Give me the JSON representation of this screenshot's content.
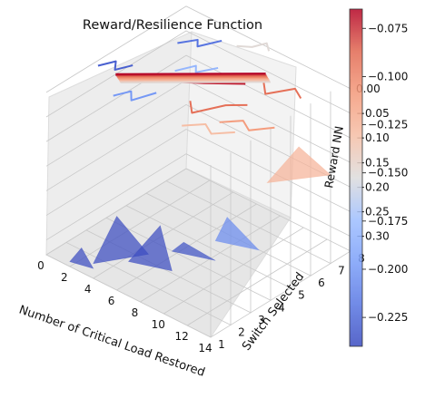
{
  "chart_data": {
    "type": "surface",
    "title": "Reward/Resilience Function",
    "xlabel": "Number of Critical Load Restored",
    "ylabel": "Switch Selected",
    "zlabel": "Reward NN",
    "x_ticks": [
      "0",
      "2",
      "4",
      "6",
      "8",
      "10",
      "12",
      "14"
    ],
    "y_ticks": [
      "1",
      "2",
      "3",
      "4",
      "5",
      "6",
      "7",
      "8"
    ],
    "z_ticks": [
      "0.00",
      "−0.05",
      "−0.10",
      "−0.15",
      "−0.20",
      "−0.25",
      "−0.30"
    ],
    "xlim": [
      0,
      14
    ],
    "ylim": [
      1,
      8
    ],
    "zlim": [
      -0.33,
      0.02
    ],
    "colormap": "coolwarm",
    "colorbar": {
      "range": [
        -0.24,
        -0.065
      ],
      "ticks": [
        "−0.075",
        "−0.100",
        "−0.125",
        "−0.150",
        "−0.175",
        "−0.200",
        "−0.225"
      ]
    },
    "surface_patches": [
      {
        "x": [
          4,
          6,
          7
        ],
        "y": [
          1,
          1,
          2
        ],
        "z": [
          -0.3,
          -0.18,
          -0.27
        ]
      },
      {
        "x": [
          7,
          8,
          9
        ],
        "y": [
          1,
          2,
          2
        ],
        "z": [
          -0.26,
          -0.2,
          -0.28
        ]
      },
      {
        "x": [
          9,
          10,
          11
        ],
        "y": [
          2,
          2,
          3
        ],
        "z": [
          -0.24,
          -0.21,
          -0.26
        ]
      },
      {
        "x": [
          11,
          12,
          13
        ],
        "y": [
          3,
          3,
          4
        ],
        "z": [
          -0.22,
          -0.16,
          -0.24
        ]
      },
      {
        "x": [
          12,
          13,
          14
        ],
        "y": [
          5,
          6,
          7
        ],
        "z": [
          -0.14,
          -0.08,
          -0.15
        ]
      },
      {
        "x": [
          2,
          3,
          4
        ],
        "y": [
          1,
          1,
          1
        ],
        "z": [
          -0.32,
          -0.28,
          -0.31
        ]
      }
    ],
    "contour_lines": [
      {
        "level": -0.23,
        "points": [
          [
            1,
            3
          ],
          [
            1.5,
            3.6
          ],
          [
            2.1,
            3.2
          ],
          [
            2.6,
            3.8
          ]
        ]
      },
      {
        "level": -0.22,
        "points": [
          [
            3,
            5.8
          ],
          [
            3.7,
            6.4
          ],
          [
            4.2,
            6.1
          ],
          [
            4.9,
            6.9
          ]
        ]
      },
      {
        "level": -0.2,
        "points": [
          [
            4,
            2
          ],
          [
            4.5,
            2.6
          ],
          [
            5.2,
            2.2
          ],
          [
            5.8,
            3.1
          ]
        ]
      },
      {
        "level": -0.18,
        "points": [
          [
            5,
            4.5
          ],
          [
            5.6,
            5.2
          ],
          [
            6.1,
            4.9
          ],
          [
            6.8,
            5.6
          ]
        ]
      },
      {
        "level": -0.15,
        "points": [
          [
            6,
            7
          ],
          [
            6.8,
            7.3
          ],
          [
            7.2,
            7.8
          ],
          [
            7.9,
            7.5
          ]
        ]
      },
      {
        "level": -0.07,
        "points": [
          [
            3,
            3.2
          ],
          [
            5,
            4.2
          ],
          [
            7,
            5.0
          ],
          [
            9,
            5.9
          ]
        ]
      },
      {
        "level": -0.07,
        "points": [
          [
            3.3,
            2.8
          ],
          [
            5.3,
            3.8
          ],
          [
            7.3,
            4.6
          ],
          [
            9.3,
            5.5
          ]
        ]
      },
      {
        "level": -0.09,
        "points": [
          [
            8,
            3.5
          ],
          [
            9,
            3.0
          ],
          [
            10,
            4.1
          ],
          [
            11,
            4.6
          ]
        ]
      },
      {
        "level": -0.09,
        "points": [
          [
            10,
            6
          ],
          [
            11,
            5.5
          ],
          [
            12,
            6.4
          ],
          [
            13,
            6.1
          ]
        ]
      },
      {
        "level": -0.11,
        "points": [
          [
            11,
            3.2
          ],
          [
            12,
            3.8
          ],
          [
            13,
            3.5
          ],
          [
            14,
            4.2
          ]
        ]
      },
      {
        "level": -0.13,
        "points": [
          [
            9.5,
            2.2
          ],
          [
            10.5,
            2.8
          ],
          [
            11.5,
            2.5
          ],
          [
            12.5,
            3.1
          ]
        ]
      }
    ]
  }
}
